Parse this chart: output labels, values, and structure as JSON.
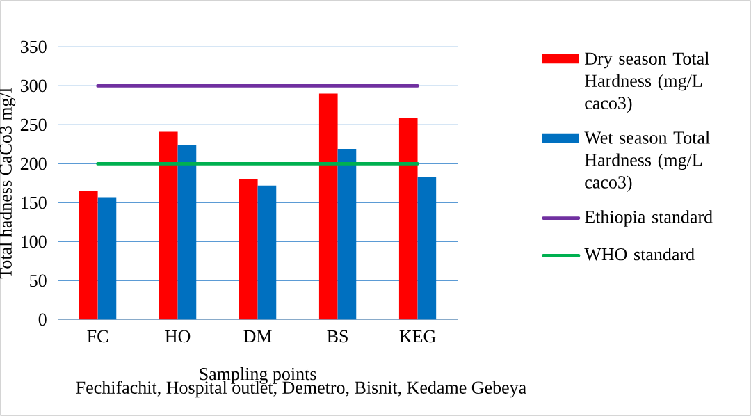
{
  "chart_data": {
    "type": "bar",
    "xlabel": "Sampling points",
    "ylabel": "Total hadness CaCo3 mg/l",
    "categories": [
      "FC",
      "HO",
      "DM",
      "BS",
      "KEG"
    ],
    "series": [
      {
        "name": "Dry season Total Hardness (mg/L caco3)",
        "color": "#ff0000",
        "values": [
          165,
          241,
          180,
          290,
          259
        ]
      },
      {
        "name": "Wet season Total Hardness (mg/L caco3)",
        "color": "#0070c0",
        "values": [
          157,
          224,
          172,
          219,
          183
        ]
      },
      {
        "name": "Ethiopia standard",
        "type": "line",
        "color": "#7030a0",
        "values": [
          300,
          300,
          300,
          300,
          300
        ]
      },
      {
        "name": "WHO standard",
        "type": "line",
        "color": "#00b050",
        "values": [
          200,
          200,
          200,
          200,
          200
        ]
      }
    ],
    "ylim": [
      0,
      350
    ],
    "yticks": [
      0,
      50,
      100,
      150,
      200,
      250,
      300,
      350
    ],
    "grid": "y",
    "legend": "right",
    "annotations": [
      "Fechifachit, Hospital outlet, Demetro, Bisnit, Kedame Gebeya"
    ]
  }
}
